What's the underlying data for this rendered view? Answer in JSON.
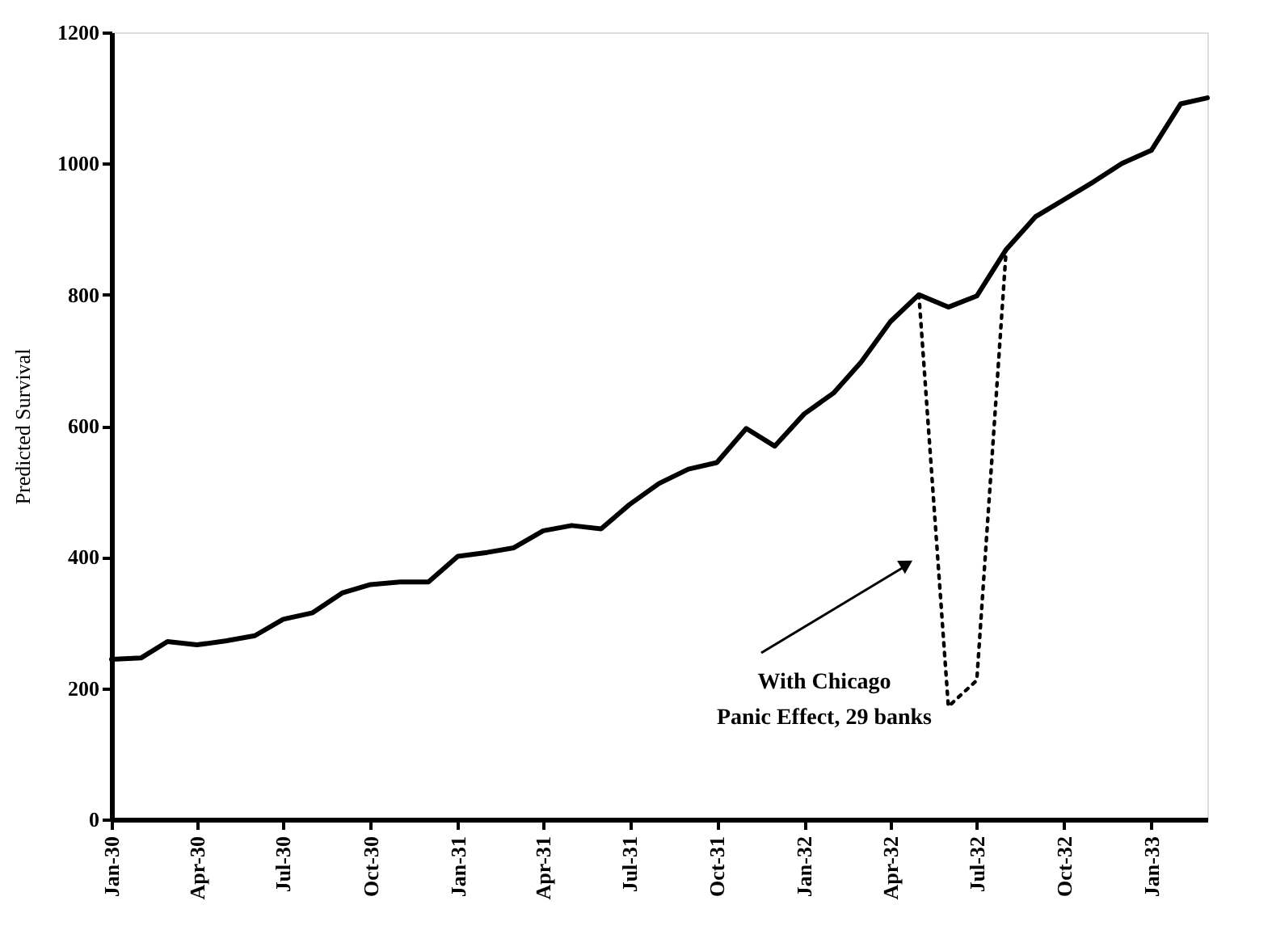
{
  "chart_data": {
    "type": "line",
    "ylabel": "Predicted Survival",
    "x": [
      "1930-01",
      "1930-02",
      "1930-03",
      "1930-04",
      "1930-05",
      "1930-06",
      "1930-07",
      "1930-08",
      "1930-09",
      "1930-10",
      "1930-11",
      "1930-12",
      "1931-01",
      "1931-02",
      "1931-03",
      "1931-04",
      "1931-05",
      "1931-06",
      "1931-07",
      "1931-08",
      "1931-09",
      "1931-10",
      "1931-11",
      "1931-12",
      "1932-01",
      "1932-02",
      "1932-03",
      "1932-04",
      "1932-05",
      "1932-06",
      "1932-07",
      "1932-08",
      "1932-09",
      "1932-10",
      "1932-11",
      "1932-12",
      "1933-01",
      "1933-02",
      "1933-03"
    ],
    "series": [
      {
        "color": "#000000",
        "line_style": "solid",
        "values": [
          244,
          246,
          271,
          266,
          272,
          280,
          305,
          315,
          345,
          358,
          362,
          362,
          401,
          407,
          414,
          440,
          448,
          443,
          480,
          512,
          534,
          544,
          596,
          569,
          618,
          650,
          697,
          759,
          800,
          781,
          798,
          869,
          919,
          945,
          972,
          1000,
          1020,
          1091,
          1100
        ]
      },
      {
        "color": "#000000",
        "line_style": "dotted",
        "x": [
          "1932-05",
          "1932-06",
          "1932-07",
          "1932-08"
        ],
        "values": [
          800,
          172,
          212,
          869
        ]
      }
    ],
    "xlim": [
      "1930-01",
      "1933-03"
    ],
    "xticks": [
      {
        "value": "1930-01",
        "label": "Jan-30"
      },
      {
        "value": "1930-04",
        "label": "Apr-30"
      },
      {
        "value": "1930-07",
        "label": "Jul-30"
      },
      {
        "value": "1930-10",
        "label": "Oct-30"
      },
      {
        "value": "1931-01",
        "label": "Jan-31"
      },
      {
        "value": "1931-04",
        "label": "Apr-31"
      },
      {
        "value": "1931-07",
        "label": "Jul-31"
      },
      {
        "value": "1931-10",
        "label": "Oct-31"
      },
      {
        "value": "1932-01",
        "label": "Jan-32"
      },
      {
        "value": "1932-04",
        "label": "Apr-32"
      },
      {
        "value": "1932-07",
        "label": "Jul-32"
      },
      {
        "value": "1932-10",
        "label": "Oct-32"
      },
      {
        "value": "1933-01",
        "label": "Jan-33"
      }
    ],
    "ylim": [
      0,
      1200
    ],
    "yticks": [
      0,
      200,
      400,
      600,
      800,
      1000,
      1200
    ],
    "grid": false,
    "marker": "none",
    "annotations": [
      "With Chicago\nPanic Effect, 29 banks"
    ]
  }
}
